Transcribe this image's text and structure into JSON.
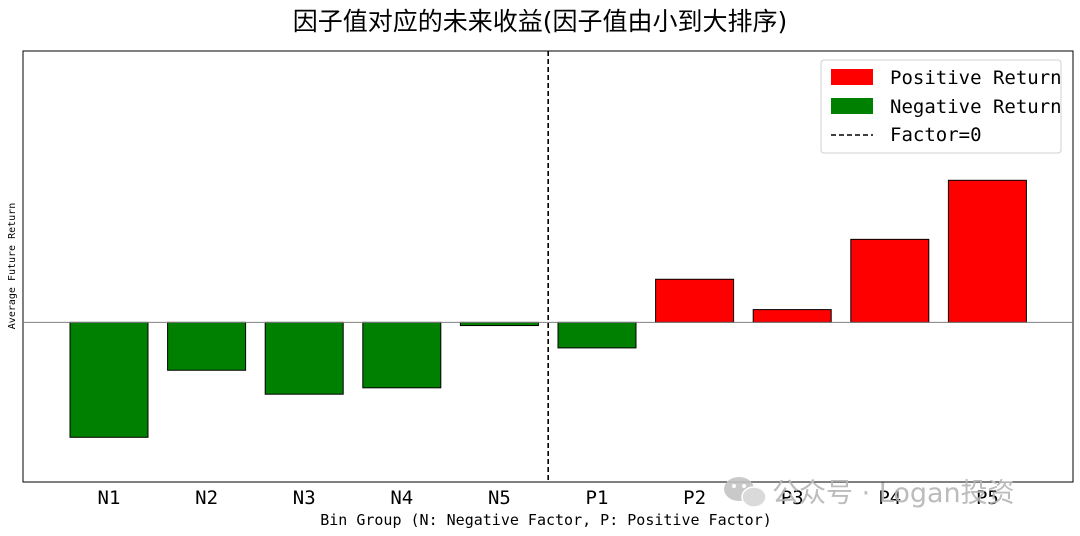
{
  "chart_data": {
    "type": "bar",
    "title": "因子值对应的未来收益(因子值由小到大排序)",
    "xlabel": "Bin Group (N: Negative Factor, P: Positive Factor)",
    "ylabel": "Average Future Return",
    "categories": [
      "N1",
      "N2",
      "N3",
      "N4",
      "N5",
      "P1",
      "P2",
      "P3",
      "P4",
      "P5"
    ],
    "values": [
      -0.72,
      -0.3,
      -0.45,
      -0.41,
      -0.02,
      -0.16,
      0.27,
      0.08,
      0.52,
      0.89
    ],
    "ylim": [
      -1.0,
      1.7
    ],
    "y_ticks_visible": false,
    "grid": false,
    "zero_line": true,
    "divider": {
      "between": [
        "N5",
        "P1"
      ],
      "style": "dashed",
      "label": "Factor=0"
    },
    "colors": {
      "positive": "#ff0000",
      "negative": "#008000",
      "divider": "#000000",
      "zero_line": "#808080"
    },
    "legend": {
      "position": "top-right",
      "items": [
        {
          "label": "Positive Return",
          "kind": "patch",
          "color": "#ff0000"
        },
        {
          "label": "Negative Return",
          "kind": "patch",
          "color": "#008000"
        },
        {
          "label": "Factor=0",
          "kind": "dashed-line",
          "color": "#000000"
        }
      ]
    }
  },
  "watermark": {
    "icon": "wechat-icon",
    "text": "公众号 · Logan投资"
  }
}
